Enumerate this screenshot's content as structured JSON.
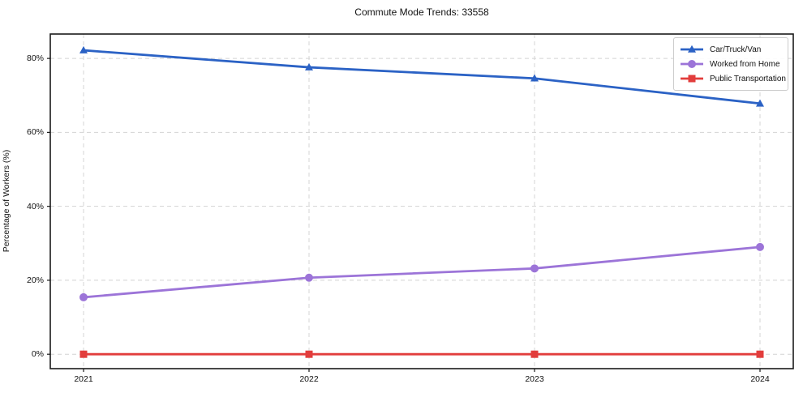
{
  "title": "Commute Mode Trends: 33558",
  "chart_data": {
    "type": "line",
    "title": "Commute Mode Trends: 33558",
    "xlabel": "",
    "ylabel": "Percentage of Workers (%)",
    "x": [
      2021,
      2022,
      2023,
      2024
    ],
    "xtick_labels": [
      "2021",
      "2022",
      "2023",
      "2024"
    ],
    "yticks": [
      0,
      20,
      40,
      60,
      80
    ],
    "ytick_labels": [
      "0%",
      "20%",
      "40%",
      "60%",
      "80%"
    ],
    "ylim": [
      -3.9,
      86.6
    ],
    "grid": true,
    "grid_style": "dashed",
    "legend_position": "upper right",
    "series": [
      {
        "name": "Car/Truck/Van",
        "marker": "triangle",
        "color": "#2b62c5",
        "values": [
          82.2,
          77.6,
          74.6,
          67.8
        ]
      },
      {
        "name": "Worked from Home",
        "marker": "circle",
        "color": "#9c74d8",
        "values": [
          15.4,
          20.7,
          23.2,
          29.0
        ]
      },
      {
        "name": "Public Transportation",
        "marker": "square",
        "color": "#e23d3c",
        "values": [
          0,
          0,
          0,
          0
        ]
      }
    ],
    "colors": {
      "grid": "#d4d4d4",
      "spine": "#1a1a1a",
      "text": "#111111"
    }
  }
}
